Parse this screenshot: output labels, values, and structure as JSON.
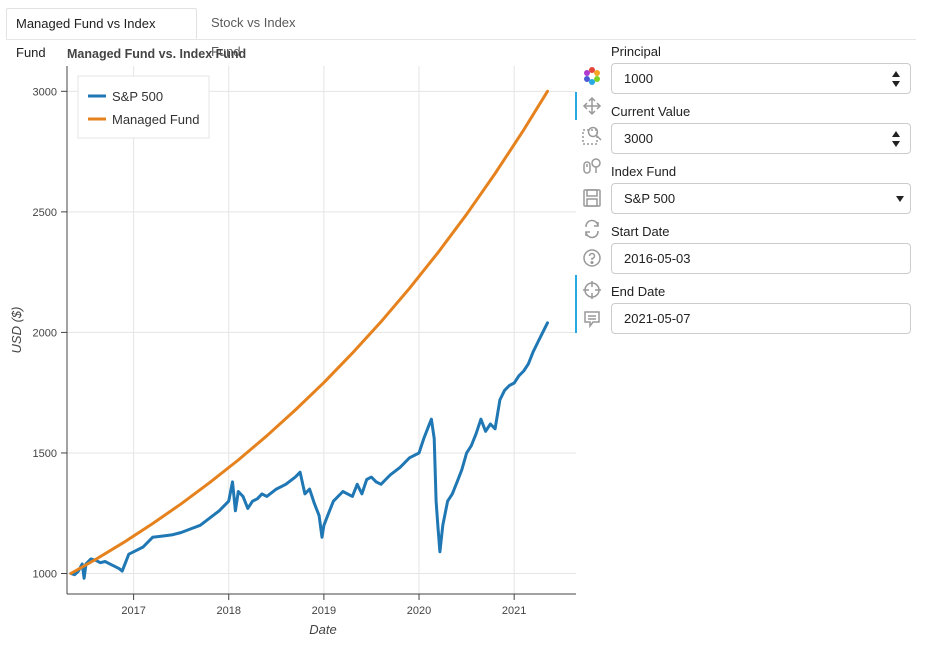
{
  "tabs": [
    {
      "label": "Managed Fund vs Index Fund",
      "active": true
    },
    {
      "label": "Stock vs Index Fund",
      "active": false
    }
  ],
  "widgets": {
    "principal_label": "Principal",
    "principal_value": "1000",
    "current_value_label": "Current Value",
    "current_value_value": "3000",
    "index_fund_label": "Index Fund",
    "index_fund_value": "S&P 500",
    "start_date_label": "Start Date",
    "start_date_value": "2016-05-03",
    "end_date_label": "End Date",
    "end_date_value": "2021-05-07"
  },
  "toolbar": {
    "tools": [
      "bokeh-logo-icon",
      "pan-icon",
      "box-zoom-icon",
      "wheel-zoom-icon",
      "save-icon",
      "reset-icon",
      "help-icon",
      "crosshair-icon",
      "hover-icon"
    ]
  },
  "colors": {
    "sp500": "#1f77b4",
    "managed": "#e6821e",
    "accent": "#26aae1"
  },
  "chart_data": {
    "type": "line",
    "title": "Managed Fund vs. Index Fund",
    "xlabel": "Date",
    "ylabel": "USD ($)",
    "xlim": [
      2016.3,
      2021.65
    ],
    "ylim": [
      915,
      3105
    ],
    "x_ticks": [
      2017,
      2018,
      2019,
      2020,
      2021
    ],
    "x_tick_labels": [
      "2017",
      "2018",
      "2019",
      "2020",
      "2021"
    ],
    "y_ticks": [
      1000,
      1500,
      2000,
      2500,
      3000
    ],
    "y_tick_labels": [
      "1000",
      "1500",
      "2000",
      "2500",
      "3000"
    ],
    "legend": {
      "placement": "top-left",
      "entries": [
        "S&P 500",
        "Managed Fund"
      ]
    },
    "series": [
      {
        "name": "S&P 500",
        "x": [
          2016.34,
          2016.38,
          2016.42,
          2016.46,
          2016.48,
          2016.5,
          2016.55,
          2016.6,
          2016.65,
          2016.7,
          2016.75,
          2016.8,
          2016.85,
          2016.88,
          2016.95,
          2017.0,
          2017.1,
          2017.2,
          2017.3,
          2017.4,
          2017.5,
          2017.6,
          2017.7,
          2017.8,
          2017.9,
          2018.0,
          2018.04,
          2018.07,
          2018.1,
          2018.15,
          2018.2,
          2018.25,
          2018.3,
          2018.35,
          2018.4,
          2018.5,
          2018.6,
          2018.7,
          2018.75,
          2018.8,
          2018.85,
          2018.9,
          2018.95,
          2018.98,
          2019.0,
          2019.05,
          2019.1,
          2019.2,
          2019.3,
          2019.35,
          2019.4,
          2019.45,
          2019.5,
          2019.55,
          2019.6,
          2019.65,
          2019.7,
          2019.8,
          2019.9,
          2020.0,
          2020.05,
          2020.1,
          2020.13,
          2020.16,
          2020.18,
          2020.2,
          2020.22,
          2020.25,
          2020.3,
          2020.35,
          2020.4,
          2020.45,
          2020.5,
          2020.55,
          2020.6,
          2020.65,
          2020.7,
          2020.75,
          2020.8,
          2020.85,
          2020.9,
          2020.95,
          2021.0,
          2021.05,
          2021.1,
          2021.15,
          2021.2,
          2021.25,
          2021.3,
          2021.35
        ],
        "values": [
          1000,
          995,
          1010,
          1040,
          980,
          1040,
          1060,
          1055,
          1045,
          1050,
          1040,
          1030,
          1020,
          1010,
          1080,
          1090,
          1110,
          1150,
          1155,
          1160,
          1170,
          1185,
          1200,
          1230,
          1260,
          1300,
          1380,
          1260,
          1340,
          1320,
          1270,
          1300,
          1310,
          1330,
          1320,
          1350,
          1370,
          1400,
          1420,
          1330,
          1350,
          1290,
          1240,
          1150,
          1200,
          1250,
          1300,
          1340,
          1320,
          1370,
          1330,
          1390,
          1400,
          1380,
          1370,
          1390,
          1410,
          1440,
          1480,
          1500,
          1560,
          1610,
          1640,
          1560,
          1300,
          1190,
          1090,
          1200,
          1300,
          1330,
          1380,
          1430,
          1500,
          1530,
          1580,
          1640,
          1590,
          1620,
          1600,
          1720,
          1760,
          1780,
          1790,
          1820,
          1840,
          1870,
          1920,
          1960,
          2000,
          2040
        ]
      },
      {
        "name": "Managed Fund",
        "x": [
          2016.34,
          2016.6,
          2016.9,
          2017.2,
          2017.5,
          2017.8,
          2018.1,
          2018.4,
          2018.7,
          2019.0,
          2019.3,
          2019.6,
          2019.9,
          2020.2,
          2020.5,
          2020.8,
          2021.1,
          2021.35
        ],
        "values": [
          1000,
          1058,
          1130,
          1207,
          1289,
          1377,
          1471,
          1571,
          1678,
          1792,
          1914,
          2044,
          2183,
          2331,
          2490,
          2659,
          2840,
          3000
        ]
      }
    ]
  }
}
